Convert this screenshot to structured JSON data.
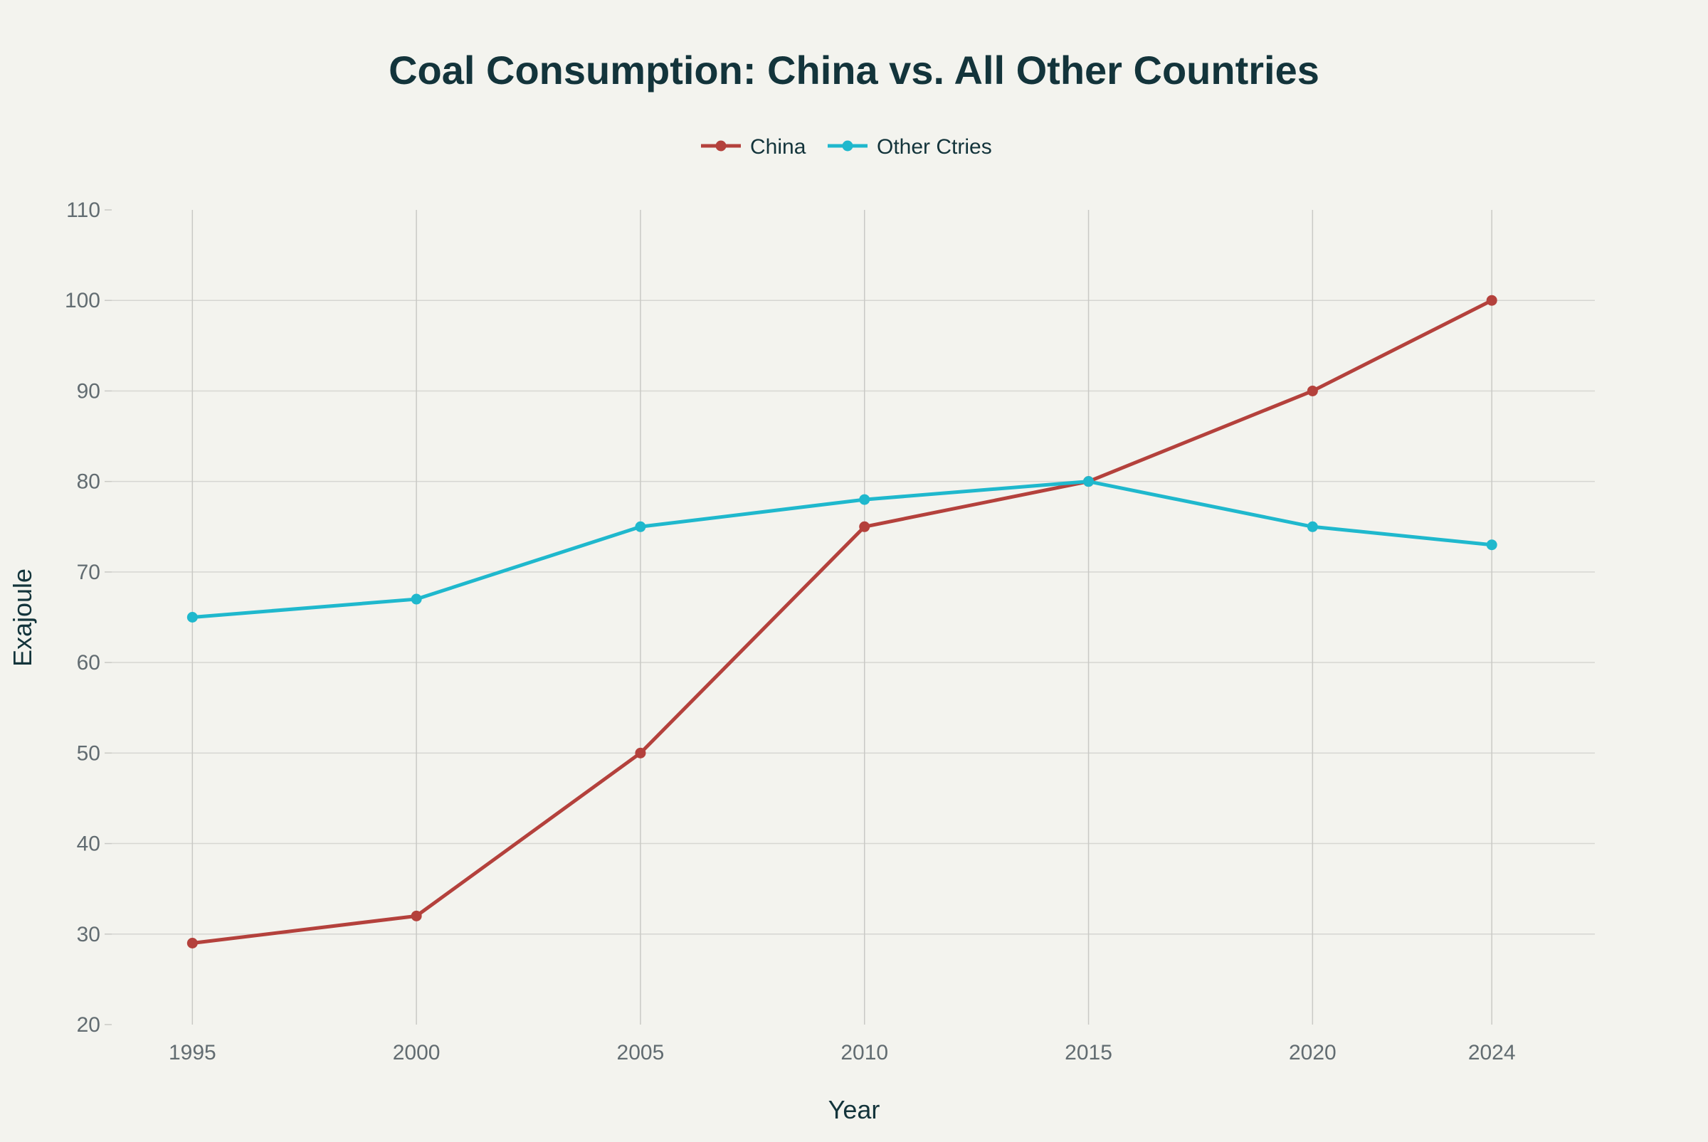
{
  "chart_data": {
    "type": "line",
    "title": "Coal Consumption: China vs. All Other Countries",
    "xlabel": "Year",
    "ylabel": "Exajoule",
    "x": [
      1995,
      2000,
      2005,
      2010,
      2015,
      2020,
      2024
    ],
    "xlim": [
      1993.2,
      2026.3
    ],
    "ylim": [
      20,
      110
    ],
    "yticks": [
      20,
      30,
      40,
      50,
      60,
      70,
      80,
      90,
      100,
      110
    ],
    "grid": true,
    "legend_position": "top-center",
    "series": [
      {
        "name": "China",
        "color": "#b4413c",
        "values": [
          29,
          32,
          50,
          75,
          80,
          90,
          100
        ]
      },
      {
        "name": "Other Ctries",
        "color": "#1fb8cd",
        "values": [
          65,
          67,
          75,
          78,
          80,
          75,
          73
        ]
      }
    ]
  }
}
